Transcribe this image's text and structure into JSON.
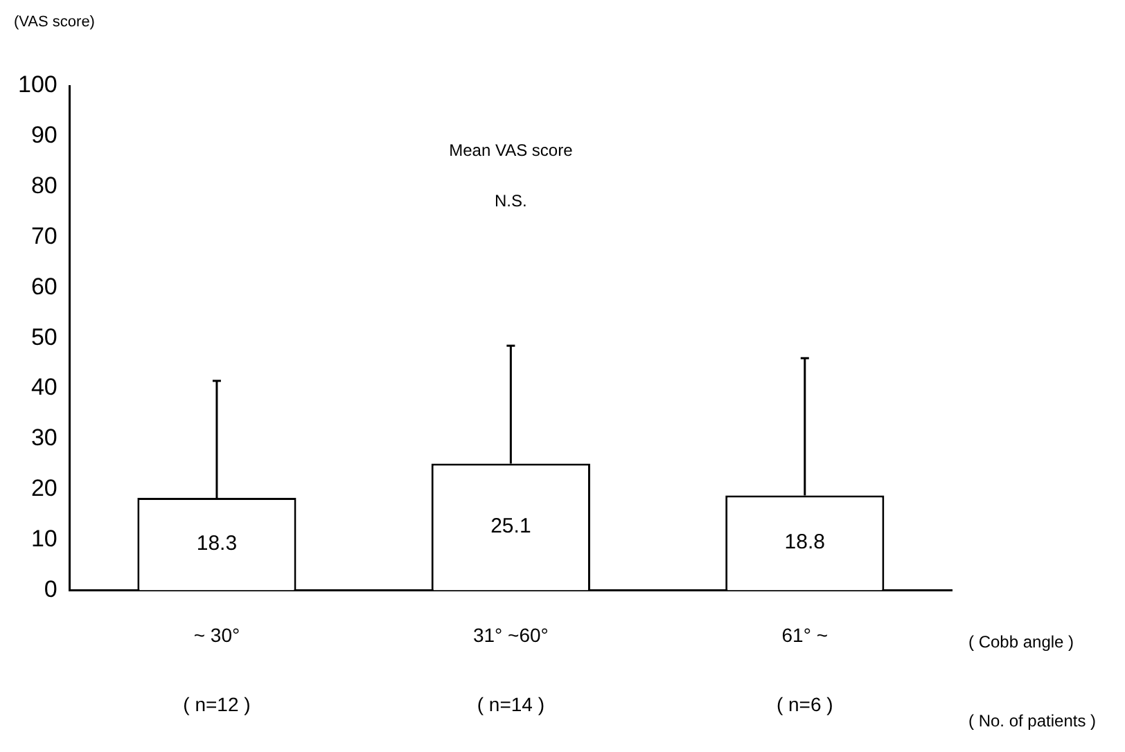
{
  "chart_data": {
    "type": "bar",
    "title": "Mean VAS score",
    "ylabel": "(VAS score)",
    "annotations": [
      "N.S.",
      "( Cobb angle )",
      "( No. of patients )"
    ],
    "categories": [
      "~ 30°\n( n=12 )",
      "31° ~60°\n( n=14 )",
      "61° ~\n( n=6 )"
    ],
    "values": [
      18.3,
      25.1,
      18.8
    ],
    "color": "#ffffff",
    "errors": [
      [
        18.3,
        41.5
      ],
      [
        25.1,
        48.5
      ],
      [
        18.8,
        46
      ]
    ],
    "data_labels": true,
    "ylim": [
      0,
      100
    ],
    "yticks": [
      0,
      10,
      20,
      30,
      40,
      50,
      60,
      70,
      80,
      90,
      100
    ],
    "grid": false,
    "legend": false
  }
}
